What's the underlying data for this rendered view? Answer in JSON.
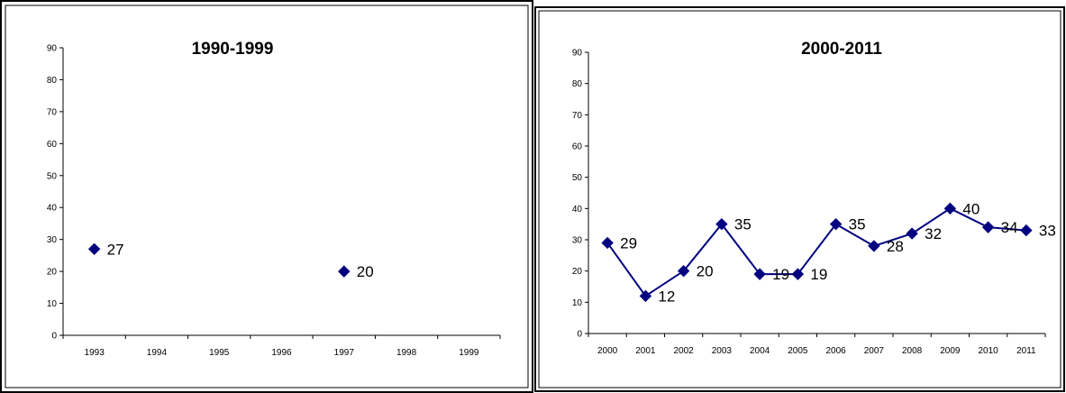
{
  "chart_data": [
    {
      "type": "line",
      "title": "1990-1999",
      "categories": [
        "1993",
        "1994",
        "1995",
        "1996",
        "1997",
        "1998",
        "1999"
      ],
      "series": [
        {
          "values": [
            27,
            null,
            null,
            null,
            20,
            null,
            null
          ],
          "color": "#000080"
        }
      ],
      "ylim": [
        0,
        90
      ],
      "yticks": [
        0,
        10,
        20,
        30,
        40,
        50,
        60,
        70,
        80,
        90
      ],
      "grid": false,
      "legend": "none"
    },
    {
      "type": "line",
      "title": "2000-2011",
      "categories": [
        "2000",
        "2001",
        "2002",
        "2003",
        "2004",
        "2005",
        "2006",
        "2007",
        "2008",
        "2009",
        "2010",
        "2011"
      ],
      "series": [
        {
          "values": [
            29,
            12,
            20,
            35,
            19,
            19,
            35,
            28,
            32,
            40,
            34,
            33
          ],
          "color": "#000080"
        }
      ],
      "ylim": [
        0,
        90
      ],
      "yticks": [
        0,
        10,
        20,
        30,
        40,
        50,
        60,
        70,
        80,
        90
      ],
      "grid": false,
      "legend": "none"
    }
  ]
}
